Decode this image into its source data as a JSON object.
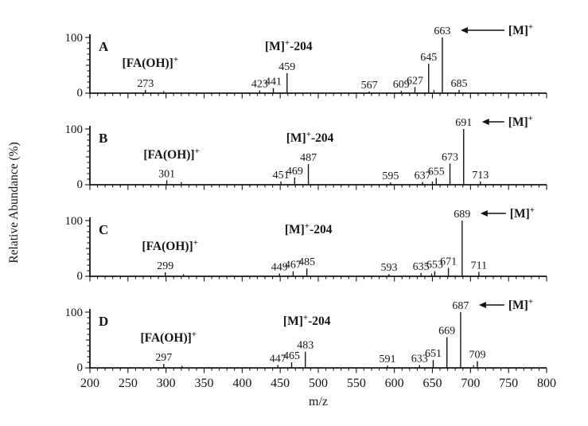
{
  "figure": {
    "bg_color": "#ffffff",
    "ink_color": "#151515",
    "y_axis_label": "Relative Abundance (%)",
    "x_axis_label": "m/z",
    "x_axis": {
      "min": 200,
      "max": 800,
      "major_tick_step": 50,
      "minor_tick_step": 10,
      "tick_labels": [
        "200",
        "250",
        "300",
        "350",
        "400",
        "450",
        "500",
        "550",
        "600",
        "650",
        "700",
        "750",
        "800"
      ]
    },
    "y_axis": {
      "min": 0,
      "max": 100,
      "minor_tick_step": 10,
      "tick_labels_top_to_bottom": [
        "100",
        "0"
      ]
    }
  },
  "chart_data": [
    {
      "type": "bar",
      "panel_label": "A",
      "xlabel": "m/z",
      "ylabel": "Relative Abundance (%)",
      "ylim": [
        0,
        100
      ],
      "xlim": [
        200,
        800
      ],
      "peaks": [
        {
          "mz": 273,
          "abundance": 6,
          "label": "273"
        },
        {
          "mz": 423,
          "abundance": 5,
          "label": "423"
        },
        {
          "mz": 441,
          "abundance": 9,
          "label": "441"
        },
        {
          "mz": 459,
          "abundance": 36,
          "label": "459"
        },
        {
          "mz": 567,
          "abundance": 3,
          "label": "567"
        },
        {
          "mz": 609,
          "abundance": 4,
          "label": "609"
        },
        {
          "mz": 627,
          "abundance": 11,
          "label": "627"
        },
        {
          "mz": 645,
          "abundance": 53,
          "label": "645"
        },
        {
          "mz": 663,
          "abundance": 100,
          "label": "663"
        },
        {
          "mz": 685,
          "abundance": 6,
          "label": "685"
        }
      ],
      "unlabeled_peaks": [
        {
          "mz": 297,
          "abundance": 4
        },
        {
          "mz": 652,
          "abundance": 6
        }
      ],
      "annotations": {
        "fragment": {
          "text": "[FA(OH)]",
          "sup": "+",
          "post": "",
          "at_mz": 273
        },
        "neutral_loss": {
          "text": "[M]",
          "sup": "+",
          "post": "-204",
          "at_mz": 459
        },
        "molecular_ion": {
          "text": "[M]",
          "sup": "+",
          "at_mz": 663,
          "arrow_length": 55
        }
      }
    },
    {
      "type": "bar",
      "panel_label": "B",
      "xlabel": "m/z",
      "ylabel": "Relative Abundance (%)",
      "ylim": [
        0,
        100
      ],
      "xlim": [
        200,
        800
      ],
      "peaks": [
        {
          "mz": 301,
          "abundance": 8,
          "label": "301"
        },
        {
          "mz": 451,
          "abundance": 6,
          "label": "451"
        },
        {
          "mz": 469,
          "abundance": 13,
          "label": "469"
        },
        {
          "mz": 487,
          "abundance": 37,
          "label": "487"
        },
        {
          "mz": 595,
          "abundance": 4,
          "label": "595"
        },
        {
          "mz": 637,
          "abundance": 5,
          "label": "637"
        },
        {
          "mz": 655,
          "abundance": 12,
          "label": "655"
        },
        {
          "mz": 673,
          "abundance": 38,
          "label": "673"
        },
        {
          "mz": 691,
          "abundance": 100,
          "label": "691"
        },
        {
          "mz": 713,
          "abundance": 6,
          "label": "713"
        }
      ],
      "unlabeled_peaks": [
        {
          "mz": 320,
          "abundance": 5
        },
        {
          "mz": 650,
          "abundance": 6
        }
      ],
      "annotations": {
        "fragment": {
          "text": "[FA(OH)]",
          "sup": "+",
          "post": "",
          "at_mz": 301
        },
        "neutral_loss": {
          "text": "[M]",
          "sup": "+",
          "post": "-204",
          "at_mz": 487
        },
        "molecular_ion": {
          "text": "[M]",
          "sup": "+",
          "at_mz": 691,
          "arrow_length": 28
        }
      }
    },
    {
      "type": "bar",
      "panel_label": "C",
      "xlabel": "m/z",
      "ylabel": "Relative Abundance (%)",
      "ylim": [
        0,
        100
      ],
      "xlim": [
        200,
        800
      ],
      "peaks": [
        {
          "mz": 299,
          "abundance": 7,
          "label": "299"
        },
        {
          "mz": 449,
          "abundance": 5,
          "label": "449"
        },
        {
          "mz": 467,
          "abundance": 9,
          "label": "467"
        },
        {
          "mz": 485,
          "abundance": 14,
          "label": "485"
        },
        {
          "mz": 593,
          "abundance": 4,
          "label": "593"
        },
        {
          "mz": 635,
          "abundance": 6,
          "label": "635"
        },
        {
          "mz": 653,
          "abundance": 9,
          "label": "653"
        },
        {
          "mz": 671,
          "abundance": 15,
          "label": "671"
        },
        {
          "mz": 689,
          "abundance": 100,
          "label": "689"
        },
        {
          "mz": 711,
          "abundance": 8,
          "label": "711"
        }
      ],
      "unlabeled_peaks": [
        {
          "mz": 323,
          "abundance": 4
        },
        {
          "mz": 649,
          "abundance": 5
        }
      ],
      "annotations": {
        "fragment": {
          "text": "[FA(OH)]",
          "sup": "+",
          "post": "",
          "at_mz": 299
        },
        "neutral_loss": {
          "text": "[M]",
          "sup": "+",
          "post": "-204",
          "at_mz": 485
        },
        "molecular_ion": {
          "text": "[M]",
          "sup": "+",
          "at_mz": 689,
          "arrow_length": 32
        }
      }
    },
    {
      "type": "bar",
      "panel_label": "D",
      "xlabel": "m/z",
      "ylabel": "Relative Abundance (%)",
      "ylim": [
        0,
        100
      ],
      "xlim": [
        200,
        800
      ],
      "peaks": [
        {
          "mz": 297,
          "abundance": 7,
          "label": "297"
        },
        {
          "mz": 447,
          "abundance": 5,
          "label": "447"
        },
        {
          "mz": 465,
          "abundance": 10,
          "label": "465"
        },
        {
          "mz": 483,
          "abundance": 29,
          "label": "483"
        },
        {
          "mz": 591,
          "abundance": 4,
          "label": "591"
        },
        {
          "mz": 633,
          "abundance": 5,
          "label": "633"
        },
        {
          "mz": 651,
          "abundance": 14,
          "label": "651"
        },
        {
          "mz": 669,
          "abundance": 55,
          "label": "669"
        },
        {
          "mz": 687,
          "abundance": 100,
          "label": "687"
        },
        {
          "mz": 709,
          "abundance": 12,
          "label": "709"
        }
      ],
      "unlabeled_peaks": [
        {
          "mz": 321,
          "abundance": 4
        },
        {
          "mz": 704,
          "abundance": 5
        }
      ],
      "annotations": {
        "fragment": {
          "text": "[FA(OH)]",
          "sup": "+",
          "post": "",
          "at_mz": 297
        },
        "neutral_loss": {
          "text": "[M]",
          "sup": "+",
          "post": "-204",
          "at_mz": 483
        },
        "molecular_ion": {
          "text": "[M]",
          "sup": "+",
          "at_mz": 687,
          "arrow_length": 32
        }
      }
    }
  ]
}
